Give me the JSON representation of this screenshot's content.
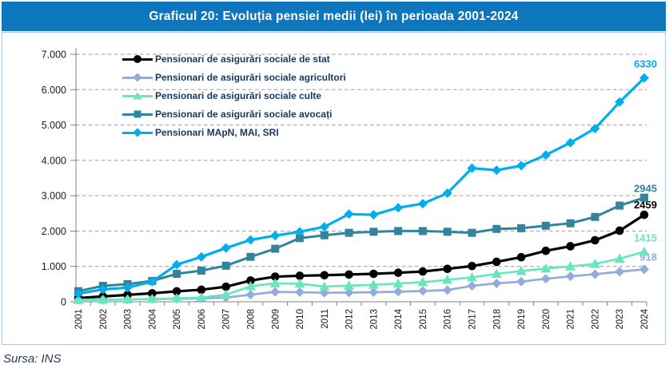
{
  "title": "Graficul 20: Evoluția pensiei medii (lei) în perioada 2001-2024",
  "source": "Sursa: INS",
  "colors": {
    "title_bar": "#0e76bd",
    "title_text": "#ffffff",
    "chart_border": "#aec6e8",
    "grid": "#9a9a9a",
    "axis": "#808080",
    "tick_text": "#1a1a1a",
    "legend_text": "#17375e"
  },
  "chart_data": {
    "type": "line",
    "title": "Graficul 20: Evoluția pensiei medii (lei) în perioada 2001-2024",
    "x": [
      "2001",
      "2002",
      "2003",
      "2004",
      "2005",
      "2006",
      "2007",
      "2008",
      "2009",
      "2010",
      "2011",
      "2012",
      "2013",
      "2014",
      "2015",
      "2016",
      "2017",
      "2018",
      "2019",
      "2020",
      "2021",
      "2022",
      "2023",
      "2024"
    ],
    "ylim": [
      0,
      7000
    ],
    "y_ticks": [
      "0",
      "1.000",
      "2.000",
      "3.000",
      "4.000",
      "5.000",
      "6.000",
      "7.000"
    ],
    "grid": true,
    "legend_position": "top-left-inside",
    "series": [
      {
        "name": "Pensionari de asigurări sociale de stat",
        "color": "#000000",
        "marker": "circle",
        "end_label": "2459",
        "values": [
          104,
          150,
          195,
          240,
          295,
          340,
          425,
          600,
          710,
          735,
          750,
          770,
          790,
          820,
          855,
          930,
          1010,
          1130,
          1260,
          1440,
          1570,
          1740,
          2010,
          2459
        ]
      },
      {
        "name": "Pensionari de asigurări sociale agricultori",
        "color": "#93acdc",
        "marker": "diamond",
        "end_label": "918",
        "values": [
          55,
          60,
          65,
          75,
          85,
          95,
          120,
          200,
          280,
          270,
          255,
          260,
          270,
          285,
          305,
          330,
          450,
          520,
          570,
          650,
          720,
          780,
          850,
          918
        ]
      },
      {
        "name": "Pensionari de asigurări sociale culte",
        "color": "#69e6be",
        "marker": "triangle",
        "end_label": "1415",
        "values": [
          50,
          55,
          65,
          80,
          95,
          120,
          200,
          440,
          520,
          510,
          430,
          455,
          480,
          515,
          555,
          620,
          690,
          790,
          870,
          940,
          1000,
          1070,
          1220,
          1415
        ]
      },
      {
        "name": "Pensionari de asigurări sociale avocați",
        "color": "#31849b",
        "marker": "square",
        "end_label": "2945",
        "values": [
          300,
          450,
          500,
          590,
          790,
          880,
          1020,
          1270,
          1500,
          1800,
          1880,
          1950,
          1980,
          2000,
          2000,
          1980,
          1950,
          2060,
          2080,
          2150,
          2220,
          2400,
          2720,
          2945
        ]
      },
      {
        "name": "Pensionari MApN, MAI, SRI",
        "color": "#00aeef",
        "marker": "diamond",
        "end_label": "6330",
        "values": [
          230,
          350,
          400,
          570,
          1050,
          1270,
          1520,
          1750,
          1870,
          1980,
          2120,
          2480,
          2460,
          2660,
          2775,
          3070,
          3780,
          3720,
          3850,
          4150,
          4500,
          4900,
          5650,
          6330
        ]
      }
    ]
  }
}
